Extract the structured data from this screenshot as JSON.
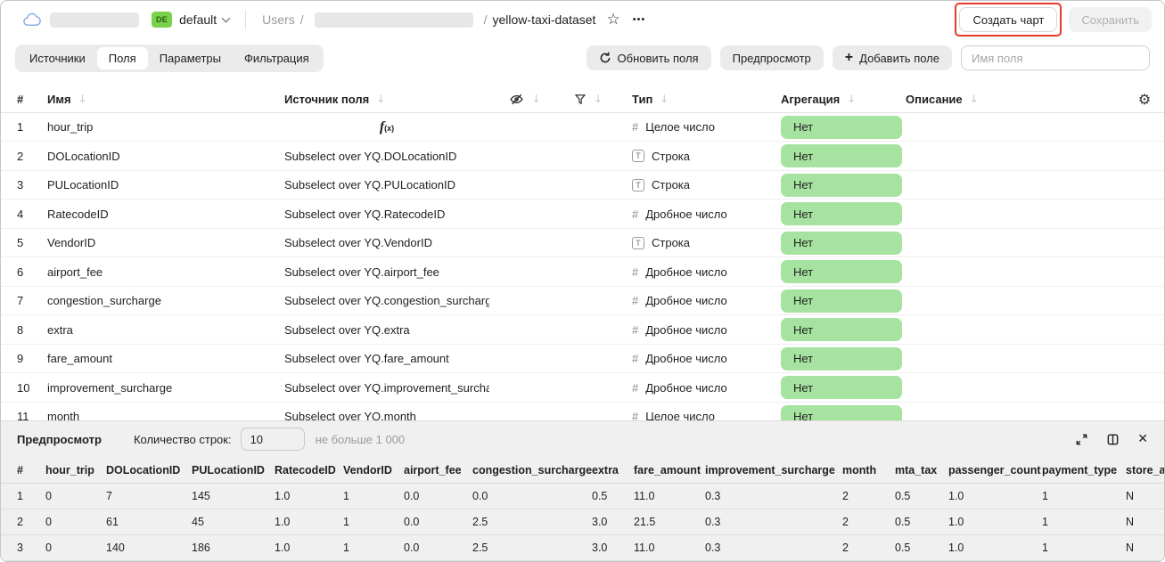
{
  "topbar": {
    "env_badge": "DE",
    "env_badge_color": "#79d24c",
    "env_name": "default",
    "breadcrumb_root": "Users",
    "breadcrumb_sep": "/",
    "dataset_name": "yellow-taxi-dataset",
    "star_icon": "☆",
    "more_icon": "•••",
    "create_chart_label": "Создать чарт",
    "create_chart_highlight_color": "#e8392b",
    "save_label": "Сохранить"
  },
  "toolbar": {
    "tabs": [
      {
        "label": "Источники",
        "active": false
      },
      {
        "label": "Поля",
        "active": true
      },
      {
        "label": "Параметры",
        "active": false
      },
      {
        "label": "Фильтрация",
        "active": false
      }
    ],
    "refresh_fields_label": "Обновить поля",
    "preview_button_label": "Предпросмотр",
    "add_field_plus": "+",
    "add_field_label": "Добавить поле",
    "field_name_placeholder": "Имя поля"
  },
  "fields_table": {
    "col_index": "#",
    "col_name": "Имя",
    "col_source": "Источник поля",
    "col_type": "Тип",
    "col_aggregation": "Агрегация",
    "col_description": "Описание",
    "sort_icon": "↓",
    "settings_icon": "⚙",
    "aggregation_badge_color": "#a6e3a0",
    "rows": [
      {
        "n": "1",
        "name": "hour_trip",
        "source": "",
        "formula": true,
        "type_label": "Целое число",
        "type_kind": "number",
        "agg": "Нет"
      },
      {
        "n": "2",
        "name": "DOLocationID",
        "source": "Subselect over YQ.DOLocationID",
        "formula": false,
        "type_label": "Строка",
        "type_kind": "string",
        "agg": "Нет"
      },
      {
        "n": "3",
        "name": "PULocationID",
        "source": "Subselect over YQ.PULocationID",
        "formula": false,
        "type_label": "Строка",
        "type_kind": "string",
        "agg": "Нет"
      },
      {
        "n": "4",
        "name": "RatecodeID",
        "source": "Subselect over YQ.RatecodeID",
        "formula": false,
        "type_label": "Дробное число",
        "type_kind": "number",
        "agg": "Нет"
      },
      {
        "n": "5",
        "name": "VendorID",
        "source": "Subselect over YQ.VendorID",
        "formula": false,
        "type_label": "Строка",
        "type_kind": "string",
        "agg": "Нет"
      },
      {
        "n": "6",
        "name": "airport_fee",
        "source": "Subselect over YQ.airport_fee",
        "formula": false,
        "type_label": "Дробное число",
        "type_kind": "number",
        "agg": "Нет"
      },
      {
        "n": "7",
        "name": "congestion_surcharge",
        "source": "Subselect over YQ.congestion_surcharge",
        "formula": false,
        "type_label": "Дробное число",
        "type_kind": "number",
        "agg": "Нет"
      },
      {
        "n": "8",
        "name": "extra",
        "source": "Subselect over YQ.extra",
        "formula": false,
        "type_label": "Дробное число",
        "type_kind": "number",
        "agg": "Нет"
      },
      {
        "n": "9",
        "name": "fare_amount",
        "source": "Subselect over YQ.fare_amount",
        "formula": false,
        "type_label": "Дробное число",
        "type_kind": "number",
        "agg": "Нет"
      },
      {
        "n": "10",
        "name": "improvement_surcharge",
        "source": "Subselect over YQ.improvement_surcharge",
        "formula": false,
        "type_label": "Дробное число",
        "type_kind": "number",
        "agg": "Нет"
      },
      {
        "n": "11",
        "name": "month",
        "source": "Subselect over YQ.month",
        "formula": false,
        "type_label": "Целое число",
        "type_kind": "number",
        "agg": "Нет"
      }
    ]
  },
  "preview": {
    "title": "Предпросмотр",
    "rows_count_label": "Количество строк:",
    "rows_count_value": "10",
    "rows_count_hint": "не больше 1 000",
    "close_icon": "✕",
    "table": {
      "headers": [
        "#",
        "hour_trip",
        "DOLocationID",
        "PULocationID",
        "RatecodeID",
        "VendorID",
        "airport_fee",
        "congestion_surcharge",
        "extra",
        "fare_amount",
        "improvement_surcharge",
        "month",
        "mta_tax",
        "passenger_count",
        "payment_type",
        "store_and_fwd_flag"
      ],
      "rows": [
        [
          "1",
          "0",
          "7",
          "145",
          "1.0",
          "1",
          "0.0",
          "0.0",
          "0.5",
          "11.0",
          "0.3",
          "2",
          "0.5",
          "1.0",
          "1",
          "N"
        ],
        [
          "2",
          "0",
          "61",
          "45",
          "1.0",
          "1",
          "0.0",
          "2.5",
          "3.0",
          "21.5",
          "0.3",
          "2",
          "0.5",
          "1.0",
          "1",
          "N"
        ],
        [
          "3",
          "0",
          "140",
          "186",
          "1.0",
          "1",
          "0.0",
          "2.5",
          "3.0",
          "11.0",
          "0.3",
          "2",
          "0.5",
          "1.0",
          "1",
          "N"
        ]
      ]
    }
  }
}
